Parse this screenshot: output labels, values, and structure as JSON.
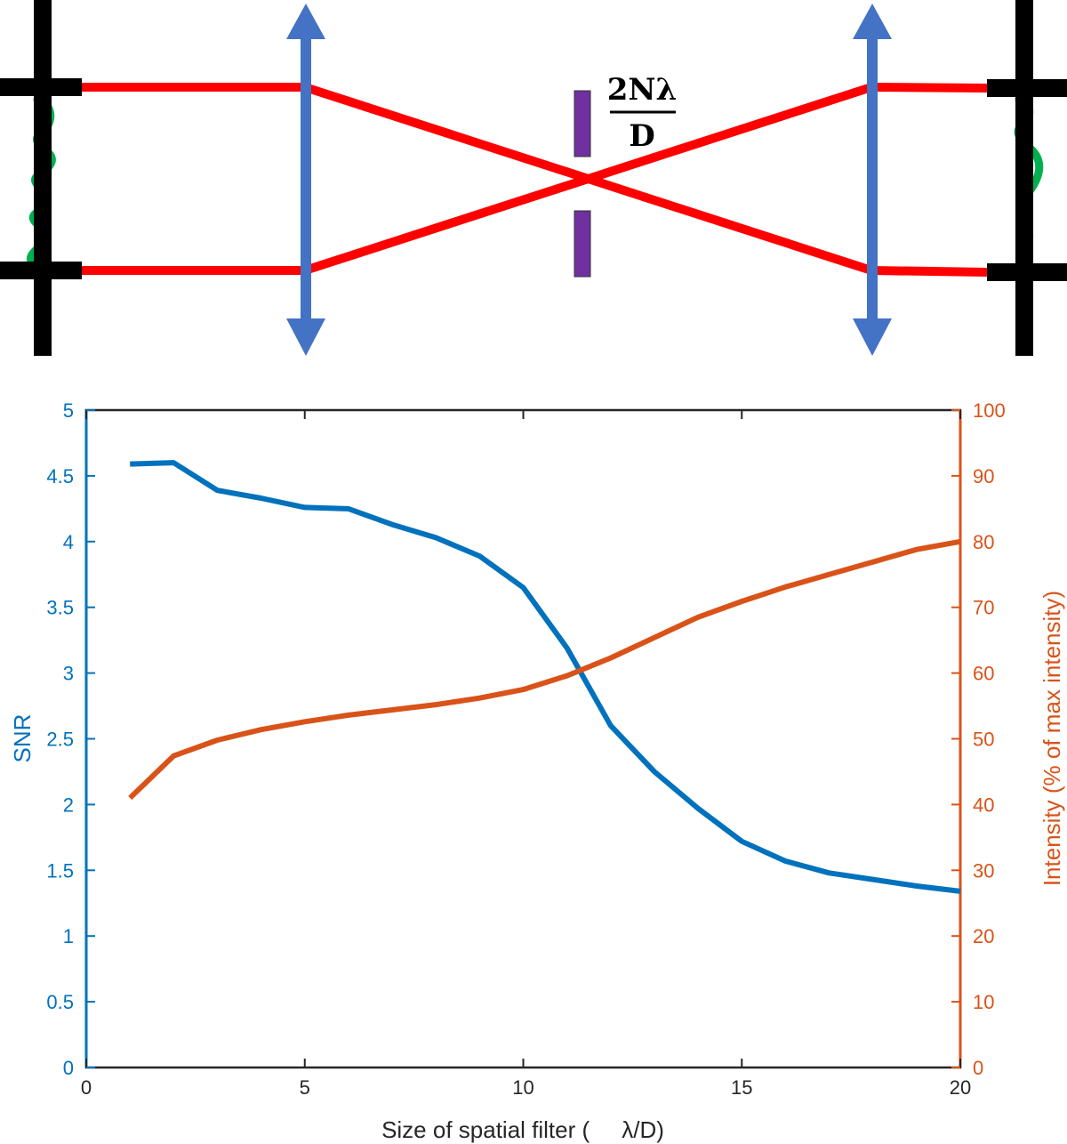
{
  "diagram": {
    "formula_numerator": "2Nλ",
    "formula_denominator": "D",
    "colors": {
      "beam": "#ff0000",
      "lens": "#4472C4",
      "stop": "#7030A0",
      "wave": "#00B050",
      "mount": "#000000"
    }
  },
  "chart_data": {
    "type": "line",
    "xlabel": "Size of spatial filter (     λ/D)",
    "ylabel_left": "SNR",
    "ylabel_right": "Intensity (% of max intensity)",
    "xlim": [
      0,
      20
    ],
    "ylim_left": [
      0,
      5
    ],
    "ylim_right": [
      0,
      100
    ],
    "x_ticks": [
      "0",
      "5",
      "10",
      "15",
      "20"
    ],
    "y_ticks_left": [
      "0",
      "0.5",
      "1",
      "1.5",
      "2",
      "2.5",
      "3",
      "3.5",
      "4",
      "4.5",
      "5"
    ],
    "y_ticks_right": [
      "0",
      "10",
      "20",
      "30",
      "40",
      "50",
      "60",
      "70",
      "80",
      "90",
      "100"
    ],
    "grid": false,
    "series": [
      {
        "axis": "left",
        "color": "#0072BD",
        "x": [
          1,
          2,
          3,
          4,
          5,
          6,
          7,
          8,
          9,
          10,
          11,
          12,
          13,
          14,
          15,
          16,
          17,
          18,
          19,
          20
        ],
        "values": [
          4.59,
          4.6,
          4.39,
          4.33,
          4.26,
          4.25,
          4.13,
          4.03,
          3.89,
          3.65,
          3.19,
          2.6,
          2.25,
          1.97,
          1.72,
          1.57,
          1.48,
          1.43,
          1.38,
          1.34
        ]
      },
      {
        "axis": "right",
        "color": "#D95319",
        "x": [
          1,
          2,
          3,
          4,
          5,
          6,
          7,
          8,
          9,
          10,
          11,
          12,
          13,
          14,
          15,
          16,
          17,
          18,
          19,
          20
        ],
        "values": [
          41,
          47.4,
          49.8,
          51.4,
          52.6,
          53.6,
          54.4,
          55.2,
          56.2,
          57.5,
          59.6,
          62.3,
          65.4,
          68.5,
          70.9,
          73.1,
          75.0,
          76.9,
          78.8,
          80.0
        ]
      }
    ]
  }
}
